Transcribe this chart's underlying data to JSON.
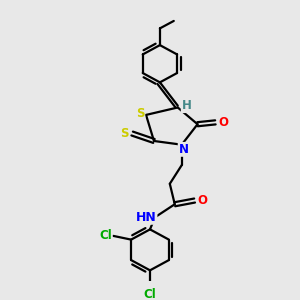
{
  "bg_color": "#e8e8e8",
  "bond_color": "#000000",
  "atom_colors": {
    "S": "#cccc00",
    "N": "#0000ff",
    "O": "#ff0000",
    "Cl": "#00aa00",
    "H": "#448888",
    "C": "#000000"
  },
  "figsize": [
    3.0,
    3.0
  ],
  "dpi": 100,
  "lw": 1.6,
  "ring_r": 20,
  "font_size": 8.5
}
